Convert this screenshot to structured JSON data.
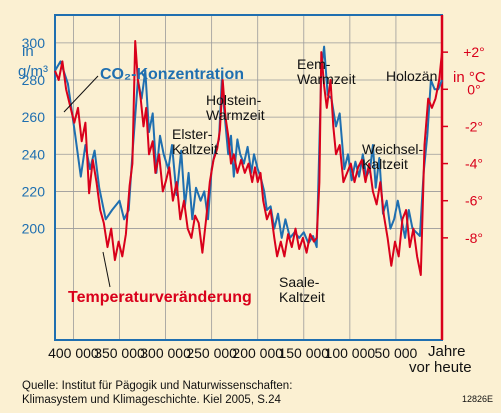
{
  "chart_data": {
    "type": "line",
    "x_axis": {
      "label": "Jahre vor heute",
      "range": [
        420000,
        0
      ],
      "ticks": [
        400000,
        350000,
        300000,
        250000,
        200000,
        150000,
        100000,
        50000
      ],
      "tick_labels": [
        "400 000",
        "350 000",
        "300 000",
        "250 000",
        "200 000",
        "150 000",
        "100 000",
        "50 000"
      ]
    },
    "y_left": {
      "unit": "in g/m³",
      "range": [
        140,
        315
      ],
      "ticks": [
        200,
        220,
        240,
        260,
        280,
        300
      ],
      "tick_labels": [
        "200",
        "220",
        "240",
        "260",
        "280",
        "300"
      ]
    },
    "y_right": {
      "unit": "in °C",
      "range": [
        -13.5,
        4
      ],
      "ticks": [
        2,
        0,
        -2,
        -4,
        -6,
        -8
      ],
      "tick_labels": [
        "+2°",
        "0°",
        "-2°",
        "-4°",
        "-6°",
        "-8°"
      ]
    },
    "grid": true,
    "series": [
      {
        "name": "CO₂-Konzentration",
        "axis": "left",
        "color": "#1f6fb0",
        "points": [
          [
            420000,
            285
          ],
          [
            414000,
            290
          ],
          [
            406000,
            278
          ],
          [
            398000,
            250
          ],
          [
            392000,
            228
          ],
          [
            387000,
            245
          ],
          [
            382000,
            232
          ],
          [
            377000,
            242
          ],
          [
            372000,
            222
          ],
          [
            365000,
            205
          ],
          [
            358000,
            210
          ],
          [
            350000,
            215
          ],
          [
            345000,
            205
          ],
          [
            340000,
            210
          ],
          [
            336000,
            240
          ],
          [
            330000,
            280
          ],
          [
            326000,
            270
          ],
          [
            322000,
            285
          ],
          [
            318000,
            252
          ],
          [
            314000,
            262
          ],
          [
            310000,
            230
          ],
          [
            306000,
            250
          ],
          [
            302000,
            240
          ],
          [
            297000,
            232
          ],
          [
            293000,
            245
          ],
          [
            288000,
            218
          ],
          [
            283000,
            242
          ],
          [
            279000,
            212
          ],
          [
            275000,
            230
          ],
          [
            271000,
            205
          ],
          [
            267000,
            222
          ],
          [
            262000,
            215
          ],
          [
            258000,
            220
          ],
          [
            254000,
            205
          ],
          [
            250000,
            232
          ],
          [
            246000,
            242
          ],
          [
            242000,
            248
          ],
          [
            239000,
            280
          ],
          [
            236000,
            262
          ],
          [
            232000,
            240
          ],
          [
            229000,
            250
          ],
          [
            226000,
            228
          ],
          [
            222000,
            248
          ],
          [
            219000,
            240
          ],
          [
            215000,
            235
          ],
          [
            211000,
            244
          ],
          [
            207000,
            230
          ],
          [
            204000,
            240
          ],
          [
            200000,
            232
          ],
          [
            197000,
            228
          ],
          [
            193000,
            220
          ],
          [
            190000,
            210
          ],
          [
            186000,
            212
          ],
          [
            182000,
            200
          ],
          [
            178000,
            208
          ],
          [
            174000,
            195
          ],
          [
            170000,
            205
          ],
          [
            165000,
            195
          ],
          [
            160000,
            198
          ],
          [
            155000,
            195
          ],
          [
            150000,
            198
          ],
          [
            145000,
            192
          ],
          [
            140000,
            196
          ],
          [
            136000,
            190
          ],
          [
            131000,
            285
          ],
          [
            128000,
            298
          ],
          [
            124000,
            272
          ],
          [
            120000,
            270
          ],
          [
            115000,
            255
          ],
          [
            111000,
            262
          ],
          [
            106000,
            232
          ],
          [
            102000,
            240
          ],
          [
            98000,
            226
          ],
          [
            94000,
            236
          ],
          [
            90000,
            228
          ],
          [
            86000,
            240
          ],
          [
            82000,
            228
          ],
          [
            78000,
            232
          ],
          [
            75000,
            245
          ],
          [
            72000,
            222
          ],
          [
            68000,
            238
          ],
          [
            64000,
            208
          ],
          [
            60000,
            215
          ],
          [
            56000,
            200
          ],
          [
            52000,
            205
          ],
          [
            48000,
            215
          ],
          [
            44000,
            205
          ],
          [
            40000,
            195
          ],
          [
            36000,
            210
          ],
          [
            32000,
            200
          ],
          [
            28000,
            198
          ],
          [
            24000,
            196
          ],
          [
            20000,
            230
          ],
          [
            16000,
            250
          ],
          [
            12000,
            280
          ],
          [
            8000,
            275
          ],
          [
            4000,
            275
          ],
          [
            0,
            280
          ]
        ]
      },
      {
        "name": "Temperaturveränderung",
        "axis": "right",
        "color": "#d9001b",
        "points": [
          [
            420000,
            1.0
          ],
          [
            416000,
            0.5
          ],
          [
            412000,
            1.5
          ],
          [
            408000,
            0.0
          ],
          [
            404000,
            -0.8
          ],
          [
            399000,
            -1.8
          ],
          [
            395000,
            -1.0
          ],
          [
            391000,
            -2.8
          ],
          [
            387000,
            -1.8
          ],
          [
            383000,
            -5.6
          ],
          [
            379000,
            -3.8
          ],
          [
            375000,
            -5.0
          ],
          [
            371000,
            -6.5
          ],
          [
            367000,
            -7.2
          ],
          [
            363000,
            -8.5
          ],
          [
            359000,
            -7.5
          ],
          [
            355000,
            -9.2
          ],
          [
            351000,
            -8.2
          ],
          [
            347000,
            -9.0
          ],
          [
            343000,
            -7.8
          ],
          [
            339000,
            -5.2
          ],
          [
            336000,
            -4.0
          ],
          [
            333000,
            2.6
          ],
          [
            330000,
            0.5
          ],
          [
            327000,
            -0.5
          ],
          [
            324000,
            -2.0
          ],
          [
            321000,
            -1.0
          ],
          [
            318000,
            -3.5
          ],
          [
            314000,
            -2.8
          ],
          [
            311000,
            -4.5
          ],
          [
            307000,
            -3.5
          ],
          [
            303000,
            -5.5
          ],
          [
            300000,
            -5.0
          ],
          [
            296000,
            -4.2
          ],
          [
            292000,
            -6.0
          ],
          [
            288000,
            -5.0
          ],
          [
            284000,
            -7.0
          ],
          [
            280000,
            -6.0
          ],
          [
            276000,
            -7.5
          ],
          [
            272000,
            -8.0
          ],
          [
            268000,
            -6.8
          ],
          [
            264000,
            -7.2
          ],
          [
            260000,
            -8.8
          ],
          [
            256000,
            -7.0
          ],
          [
            252000,
            -5.0
          ],
          [
            248000,
            -3.8
          ],
          [
            244000,
            -3.2
          ],
          [
            241000,
            -2.2
          ],
          [
            238000,
            0.5
          ],
          [
            235000,
            -1.5
          ],
          [
            232000,
            -2.5
          ],
          [
            229000,
            -4.0
          ],
          [
            226000,
            -3.5
          ],
          [
            222000,
            -4.5
          ],
          [
            218000,
            -3.8
          ],
          [
            214000,
            -4.5
          ],
          [
            210000,
            -4.0
          ],
          [
            206000,
            -5.0
          ],
          [
            203000,
            -4.2
          ],
          [
            200000,
            -5.0
          ],
          [
            197000,
            -4.5
          ],
          [
            194000,
            -6.0
          ],
          [
            190000,
            -7.0
          ],
          [
            186000,
            -6.5
          ],
          [
            182000,
            -8.0
          ],
          [
            179000,
            -9.0
          ],
          [
            175000,
            -8.2
          ],
          [
            171000,
            -9.0
          ],
          [
            167000,
            -7.8
          ],
          [
            163000,
            -8.5
          ],
          [
            159000,
            -7.5
          ],
          [
            155000,
            -8.6
          ],
          [
            151000,
            -8.0
          ],
          [
            147000,
            -8.8
          ],
          [
            143000,
            -7.8
          ],
          [
            139000,
            -8.2
          ],
          [
            136000,
            -8.0
          ],
          [
            133000,
            -5.0
          ],
          [
            131000,
            2.0
          ],
          [
            128000,
            0.2
          ],
          [
            125000,
            -1.0
          ],
          [
            121000,
            0.5
          ],
          [
            118000,
            -2.0
          ],
          [
            115000,
            -3.5
          ],
          [
            111000,
            -3.0
          ],
          [
            107000,
            -5.0
          ],
          [
            103000,
            -4.5
          ],
          [
            99000,
            -4.0
          ],
          [
            95000,
            -5.0
          ],
          [
            91000,
            -4.2
          ],
          [
            87000,
            -3.8
          ],
          [
            83000,
            -5.0
          ],
          [
            79000,
            -4.0
          ],
          [
            75000,
            -5.5
          ],
          [
            71000,
            -6.2
          ],
          [
            67000,
            -5.0
          ],
          [
            63000,
            -6.8
          ],
          [
            59000,
            -8.0
          ],
          [
            55000,
            -9.5
          ],
          [
            51000,
            -8.2
          ],
          [
            47000,
            -9.0
          ],
          [
            43000,
            -7.0
          ],
          [
            39000,
            -6.5
          ],
          [
            35000,
            -8.5
          ],
          [
            31000,
            -7.5
          ],
          [
            27000,
            -9.0
          ],
          [
            23000,
            -10.0
          ],
          [
            19000,
            -3.0
          ],
          [
            15000,
            -0.5
          ],
          [
            11000,
            -1.0
          ],
          [
            7000,
            -0.5
          ],
          [
            3000,
            0.5
          ],
          [
            0,
            2.0
          ]
        ]
      }
    ],
    "annotations": [
      {
        "text": "CO₂-Konzentration",
        "color": "#1f6fb0"
      },
      {
        "text": "Temperaturveränderung",
        "color": "#d9001b"
      },
      {
        "text": "Holstein-\nWarmzeit"
      },
      {
        "text": "Elster-\nKaltzeit"
      },
      {
        "text": "Eem-\nWarmzeit"
      },
      {
        "text": "Holozän"
      },
      {
        "text": "Weichsel-\nKaltzeit"
      },
      {
        "text": "Saale-\nKaltzeit"
      }
    ]
  },
  "labels": {
    "left_unit_line1": "in",
    "left_unit_line2": "g/m³",
    "right_unit": "in °C",
    "x_title_line1": "Jahre",
    "x_title_line2": "vor heute",
    "co2_label": "CO₂-Konzentration",
    "temp_label": "Temperaturveränderung",
    "holstein_1": "Holstein-",
    "holstein_2": "Warmzeit",
    "elster_1": "Elster-",
    "elster_2": "Kaltzeit",
    "eem_1": "Eem-",
    "eem_2": "Warmzeit",
    "holozaen": "Holozän",
    "weichsel_1": "Weichsel-",
    "weichsel_2": "Kaltzeit",
    "saale_1": "Saale-",
    "saale_2": "Kaltzeit"
  },
  "footer": {
    "line1": "Quelle: Institut für Pägogik und Naturwissenschaften:",
    "line2": "Klimasystem und Klimageschichte. Kiel 2005, S.24",
    "code": "12826E"
  },
  "colors": {
    "background": "#fbf0d2",
    "blue": "#1f6fb0",
    "red": "#d9001b",
    "grid": "#9a9a9a"
  }
}
